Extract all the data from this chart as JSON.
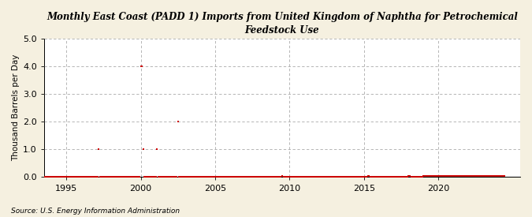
{
  "title": "Monthly East Coast (PADD 1) Imports from United Kingdom of Naphtha for Petrochemical\nFeedstock Use",
  "ylabel": "Thousand Barrels per Day",
  "source": "Source: U.S. Energy Information Administration",
  "background_color": "#f5f0e0",
  "plot_bg_color": "#ffffff",
  "marker_color": "#cc0000",
  "grid_color": "#b0b0b0",
  "xlim": [
    1993.5,
    2025.5
  ],
  "ylim": [
    0.0,
    5.0
  ],
  "yticks": [
    0.0,
    1.0,
    2.0,
    3.0,
    4.0,
    5.0
  ],
  "xticks": [
    1995,
    2000,
    2005,
    2010,
    2015,
    2020
  ],
  "data_points": [
    [
      1993.0,
      0.0
    ],
    [
      1993.083,
      0.0
    ],
    [
      1993.167,
      0.0
    ],
    [
      1993.25,
      0.0
    ],
    [
      1993.333,
      0.0
    ],
    [
      1993.417,
      0.0
    ],
    [
      1993.5,
      0.0
    ],
    [
      1993.583,
      0.0
    ],
    [
      1993.667,
      0.0
    ],
    [
      1993.75,
      0.0
    ],
    [
      1993.833,
      0.0
    ],
    [
      1993.917,
      0.0
    ],
    [
      1994.0,
      0.0
    ],
    [
      1994.083,
      0.0
    ],
    [
      1994.167,
      0.0
    ],
    [
      1994.25,
      0.0
    ],
    [
      1994.333,
      0.0
    ],
    [
      1994.417,
      0.0
    ],
    [
      1994.5,
      0.0
    ],
    [
      1994.583,
      0.0
    ],
    [
      1994.667,
      0.0
    ],
    [
      1994.75,
      0.0
    ],
    [
      1994.833,
      0.0
    ],
    [
      1994.917,
      0.0
    ],
    [
      1995.0,
      0.0
    ],
    [
      1995.083,
      0.0
    ],
    [
      1995.167,
      0.0
    ],
    [
      1995.25,
      0.0
    ],
    [
      1995.333,
      0.0
    ],
    [
      1995.417,
      0.0
    ],
    [
      1995.5,
      0.0
    ],
    [
      1995.583,
      0.0
    ],
    [
      1995.667,
      0.0
    ],
    [
      1995.75,
      0.0
    ],
    [
      1995.833,
      0.0
    ],
    [
      1995.917,
      0.0
    ],
    [
      1996.0,
      0.0
    ],
    [
      1996.083,
      0.0
    ],
    [
      1996.167,
      0.0
    ],
    [
      1996.25,
      0.0
    ],
    [
      1996.333,
      0.0
    ],
    [
      1996.417,
      0.0
    ],
    [
      1996.5,
      0.0
    ],
    [
      1996.583,
      0.0
    ],
    [
      1996.667,
      0.0
    ],
    [
      1996.75,
      0.0
    ],
    [
      1996.833,
      0.0
    ],
    [
      1996.917,
      0.0
    ],
    [
      1997.0,
      0.0
    ],
    [
      1997.083,
      0.0
    ],
    [
      1997.167,
      1.0
    ],
    [
      1997.25,
      0.0
    ],
    [
      1997.333,
      0.0
    ],
    [
      1997.417,
      0.0
    ],
    [
      1997.5,
      0.0
    ],
    [
      1997.583,
      0.0
    ],
    [
      1997.667,
      0.0
    ],
    [
      1997.75,
      0.0
    ],
    [
      1997.833,
      0.0
    ],
    [
      1997.917,
      0.0
    ],
    [
      1998.0,
      0.0
    ],
    [
      1998.083,
      0.0
    ],
    [
      1998.167,
      0.0
    ],
    [
      1998.25,
      0.0
    ],
    [
      1998.333,
      0.0
    ],
    [
      1998.417,
      0.0
    ],
    [
      1998.5,
      0.0
    ],
    [
      1998.583,
      0.0
    ],
    [
      1998.667,
      0.0
    ],
    [
      1998.75,
      0.0
    ],
    [
      1998.833,
      0.0
    ],
    [
      1998.917,
      0.0
    ],
    [
      1999.0,
      0.0
    ],
    [
      1999.083,
      0.0
    ],
    [
      1999.167,
      0.0
    ],
    [
      1999.25,
      0.0
    ],
    [
      1999.333,
      0.0
    ],
    [
      1999.417,
      0.0
    ],
    [
      1999.5,
      0.0
    ],
    [
      1999.583,
      0.0
    ],
    [
      1999.667,
      0.0
    ],
    [
      1999.75,
      0.0
    ],
    [
      1999.833,
      0.0
    ],
    [
      1999.917,
      0.0
    ],
    [
      2000.0,
      4.0
    ],
    [
      2000.083,
      4.0
    ],
    [
      2000.167,
      1.0
    ],
    [
      2000.25,
      0.0
    ],
    [
      2000.333,
      0.0
    ],
    [
      2000.417,
      0.0
    ],
    [
      2000.5,
      0.0
    ],
    [
      2000.583,
      0.0
    ],
    [
      2000.667,
      0.0
    ],
    [
      2000.75,
      0.0
    ],
    [
      2000.833,
      0.0
    ],
    [
      2000.917,
      0.0
    ],
    [
      2001.0,
      0.0
    ],
    [
      2001.083,
      1.0
    ],
    [
      2001.167,
      0.0
    ],
    [
      2001.25,
      0.0
    ],
    [
      2001.333,
      0.0
    ],
    [
      2001.417,
      0.0
    ],
    [
      2001.5,
      0.0
    ],
    [
      2001.583,
      0.0
    ],
    [
      2001.667,
      0.0
    ],
    [
      2001.75,
      0.0
    ],
    [
      2001.833,
      0.0
    ],
    [
      2001.917,
      0.0
    ],
    [
      2002.0,
      0.0
    ],
    [
      2002.083,
      0.0
    ],
    [
      2002.167,
      0.0
    ],
    [
      2002.25,
      0.0
    ],
    [
      2002.333,
      0.0
    ],
    [
      2002.417,
      0.0
    ],
    [
      2002.5,
      2.0
    ],
    [
      2002.583,
      0.0
    ],
    [
      2002.667,
      0.0
    ],
    [
      2002.75,
      0.0
    ],
    [
      2002.833,
      0.0
    ],
    [
      2002.917,
      0.0
    ],
    [
      2003.0,
      0.0
    ],
    [
      2003.083,
      0.0
    ],
    [
      2003.167,
      0.0
    ],
    [
      2003.25,
      0.0
    ],
    [
      2003.333,
      0.0
    ],
    [
      2003.417,
      0.0
    ],
    [
      2003.5,
      0.0
    ],
    [
      2003.583,
      0.0
    ],
    [
      2003.667,
      0.0
    ],
    [
      2003.75,
      0.0
    ],
    [
      2003.833,
      0.0
    ],
    [
      2003.917,
      0.0
    ],
    [
      2004.0,
      0.0
    ],
    [
      2004.083,
      0.0
    ],
    [
      2004.167,
      0.0
    ],
    [
      2004.25,
      0.0
    ],
    [
      2004.333,
      0.0
    ],
    [
      2004.417,
      0.0
    ],
    [
      2004.5,
      0.0
    ],
    [
      2004.583,
      0.0
    ],
    [
      2004.667,
      0.0
    ],
    [
      2004.75,
      0.0
    ],
    [
      2004.833,
      0.0
    ],
    [
      2004.917,
      0.0
    ],
    [
      2005.0,
      0.0
    ],
    [
      2005.083,
      0.0
    ],
    [
      2005.167,
      0.0
    ],
    [
      2005.25,
      0.0
    ],
    [
      2005.333,
      0.0
    ],
    [
      2005.417,
      0.0
    ],
    [
      2005.5,
      0.0
    ],
    [
      2005.583,
      0.0
    ],
    [
      2005.667,
      0.0
    ],
    [
      2005.75,
      0.0
    ],
    [
      2005.833,
      0.0
    ],
    [
      2005.917,
      0.0
    ],
    [
      2006.0,
      0.0
    ],
    [
      2006.083,
      0.0
    ],
    [
      2006.167,
      0.0
    ],
    [
      2006.25,
      0.0
    ],
    [
      2006.333,
      0.0
    ],
    [
      2006.417,
      0.0
    ],
    [
      2006.5,
      0.0
    ],
    [
      2006.583,
      0.0
    ],
    [
      2006.667,
      0.0
    ],
    [
      2006.75,
      0.0
    ],
    [
      2006.833,
      0.0
    ],
    [
      2006.917,
      0.0
    ],
    [
      2007.0,
      0.0
    ],
    [
      2007.083,
      0.0
    ],
    [
      2007.167,
      0.0
    ],
    [
      2007.25,
      0.0
    ],
    [
      2007.333,
      0.0
    ],
    [
      2007.417,
      0.0
    ],
    [
      2007.5,
      0.0
    ],
    [
      2007.583,
      0.0
    ],
    [
      2007.667,
      0.0
    ],
    [
      2007.75,
      0.0
    ],
    [
      2007.833,
      0.0
    ],
    [
      2007.917,
      0.0
    ],
    [
      2008.0,
      0.0
    ],
    [
      2008.083,
      0.0
    ],
    [
      2008.167,
      0.0
    ],
    [
      2008.25,
      0.0
    ],
    [
      2008.333,
      0.0
    ],
    [
      2008.417,
      0.0
    ],
    [
      2008.5,
      0.0
    ],
    [
      2008.583,
      0.0
    ],
    [
      2008.667,
      0.0
    ],
    [
      2008.75,
      0.0
    ],
    [
      2008.833,
      0.0
    ],
    [
      2008.917,
      0.0
    ],
    [
      2009.0,
      0.0
    ],
    [
      2009.083,
      0.0
    ],
    [
      2009.167,
      0.0
    ],
    [
      2009.25,
      0.0
    ],
    [
      2009.333,
      0.0
    ],
    [
      2009.417,
      0.0
    ],
    [
      2009.5,
      0.05
    ],
    [
      2009.583,
      0.0
    ],
    [
      2009.667,
      0.0
    ],
    [
      2009.75,
      0.0
    ],
    [
      2009.833,
      0.0
    ],
    [
      2009.917,
      0.0
    ],
    [
      2010.0,
      0.0
    ],
    [
      2010.083,
      0.0
    ],
    [
      2010.167,
      0.0
    ],
    [
      2010.25,
      0.0
    ],
    [
      2010.333,
      0.0
    ],
    [
      2010.417,
      0.0
    ],
    [
      2010.5,
      0.0
    ],
    [
      2010.583,
      0.0
    ],
    [
      2010.667,
      0.0
    ],
    [
      2010.75,
      0.0
    ],
    [
      2010.833,
      0.0
    ],
    [
      2010.917,
      0.0
    ],
    [
      2011.0,
      0.0
    ],
    [
      2011.083,
      0.0
    ],
    [
      2011.167,
      0.0
    ],
    [
      2011.25,
      0.0
    ],
    [
      2011.333,
      0.0
    ],
    [
      2011.417,
      0.0
    ],
    [
      2011.5,
      0.0
    ],
    [
      2011.583,
      0.0
    ],
    [
      2011.667,
      0.0
    ],
    [
      2011.75,
      0.0
    ],
    [
      2011.833,
      0.0
    ],
    [
      2011.917,
      0.0
    ],
    [
      2012.0,
      0.0
    ],
    [
      2012.083,
      0.0
    ],
    [
      2012.167,
      0.0
    ],
    [
      2012.25,
      0.0
    ],
    [
      2012.333,
      0.0
    ],
    [
      2012.417,
      0.0
    ],
    [
      2012.5,
      0.0
    ],
    [
      2012.583,
      0.0
    ],
    [
      2012.667,
      0.0
    ],
    [
      2012.75,
      0.0
    ],
    [
      2012.833,
      0.0
    ],
    [
      2012.917,
      0.0
    ],
    [
      2013.0,
      0.0
    ],
    [
      2013.083,
      0.0
    ],
    [
      2013.167,
      0.0
    ],
    [
      2013.25,
      0.0
    ],
    [
      2013.333,
      0.0
    ],
    [
      2013.417,
      0.0
    ],
    [
      2013.5,
      0.0
    ],
    [
      2013.583,
      0.0
    ],
    [
      2013.667,
      0.0
    ],
    [
      2013.75,
      0.0
    ],
    [
      2013.833,
      0.0
    ],
    [
      2013.917,
      0.0
    ],
    [
      2014.0,
      0.0
    ],
    [
      2014.083,
      0.0
    ],
    [
      2014.167,
      0.0
    ],
    [
      2014.25,
      0.0
    ],
    [
      2014.333,
      0.0
    ],
    [
      2014.417,
      0.0
    ],
    [
      2014.5,
      0.0
    ],
    [
      2014.583,
      0.0
    ],
    [
      2014.667,
      0.0
    ],
    [
      2014.75,
      0.0
    ],
    [
      2014.833,
      0.0
    ],
    [
      2014.917,
      0.0
    ],
    [
      2015.0,
      0.0
    ],
    [
      2015.083,
      0.0
    ],
    [
      2015.167,
      0.0
    ],
    [
      2015.25,
      0.05
    ],
    [
      2015.333,
      0.05
    ],
    [
      2015.417,
      0.0
    ],
    [
      2015.5,
      0.0
    ],
    [
      2015.583,
      0.0
    ],
    [
      2015.667,
      0.0
    ],
    [
      2015.75,
      0.0
    ],
    [
      2015.833,
      0.0
    ],
    [
      2015.917,
      0.0
    ],
    [
      2016.0,
      0.0
    ],
    [
      2016.083,
      0.0
    ],
    [
      2016.167,
      0.0
    ],
    [
      2016.25,
      0.0
    ],
    [
      2016.333,
      0.0
    ],
    [
      2016.417,
      0.0
    ],
    [
      2016.5,
      0.0
    ],
    [
      2016.583,
      0.0
    ],
    [
      2016.667,
      0.0
    ],
    [
      2016.75,
      0.0
    ],
    [
      2016.833,
      0.0
    ],
    [
      2016.917,
      0.0
    ],
    [
      2017.0,
      0.0
    ],
    [
      2017.083,
      0.0
    ],
    [
      2017.167,
      0.0
    ],
    [
      2017.25,
      0.0
    ],
    [
      2017.333,
      0.0
    ],
    [
      2017.417,
      0.0
    ],
    [
      2017.5,
      0.0
    ],
    [
      2017.583,
      0.0
    ],
    [
      2017.667,
      0.0
    ],
    [
      2017.75,
      0.0
    ],
    [
      2017.833,
      0.0
    ],
    [
      2017.917,
      0.0
    ],
    [
      2018.0,
      0.05
    ],
    [
      2018.083,
      0.05
    ],
    [
      2018.167,
      0.0
    ],
    [
      2018.25,
      0.0
    ],
    [
      2018.333,
      0.0
    ],
    [
      2018.417,
      0.0
    ],
    [
      2018.5,
      0.0
    ],
    [
      2018.583,
      0.0
    ],
    [
      2018.667,
      0.0
    ],
    [
      2018.75,
      0.0
    ],
    [
      2018.833,
      0.0
    ],
    [
      2018.917,
      0.0
    ],
    [
      2019.0,
      0.05
    ],
    [
      2019.083,
      0.05
    ],
    [
      2019.167,
      0.05
    ],
    [
      2019.25,
      0.05
    ],
    [
      2019.333,
      0.05
    ],
    [
      2019.417,
      0.05
    ],
    [
      2019.5,
      0.05
    ],
    [
      2019.583,
      0.05
    ],
    [
      2019.667,
      0.05
    ],
    [
      2019.75,
      0.05
    ],
    [
      2019.833,
      0.05
    ],
    [
      2019.917,
      0.05
    ],
    [
      2020.0,
      0.05
    ],
    [
      2020.083,
      0.05
    ],
    [
      2020.167,
      0.05
    ],
    [
      2020.25,
      0.05
    ],
    [
      2020.333,
      0.05
    ],
    [
      2020.417,
      0.05
    ],
    [
      2020.5,
      0.05
    ],
    [
      2020.583,
      0.05
    ],
    [
      2020.667,
      0.05
    ],
    [
      2020.75,
      0.05
    ],
    [
      2020.833,
      0.05
    ],
    [
      2020.917,
      0.05
    ],
    [
      2021.0,
      0.05
    ],
    [
      2021.083,
      0.05
    ],
    [
      2021.167,
      0.05
    ],
    [
      2021.25,
      0.05
    ],
    [
      2021.333,
      0.05
    ],
    [
      2021.417,
      0.05
    ],
    [
      2021.5,
      0.05
    ],
    [
      2021.583,
      0.05
    ],
    [
      2021.667,
      0.05
    ],
    [
      2021.75,
      0.05
    ],
    [
      2021.833,
      0.05
    ],
    [
      2021.917,
      0.05
    ],
    [
      2022.0,
      0.05
    ],
    [
      2022.083,
      0.05
    ],
    [
      2022.167,
      0.05
    ],
    [
      2022.25,
      0.05
    ],
    [
      2022.333,
      0.05
    ],
    [
      2022.417,
      0.05
    ],
    [
      2022.5,
      0.05
    ],
    [
      2022.583,
      0.05
    ],
    [
      2022.667,
      0.05
    ],
    [
      2022.75,
      0.05
    ],
    [
      2022.833,
      0.05
    ],
    [
      2022.917,
      0.05
    ],
    [
      2023.0,
      0.05
    ],
    [
      2023.083,
      0.05
    ],
    [
      2023.167,
      0.05
    ],
    [
      2023.25,
      0.05
    ],
    [
      2023.333,
      0.05
    ],
    [
      2023.417,
      0.05
    ],
    [
      2023.5,
      0.05
    ],
    [
      2023.583,
      0.05
    ],
    [
      2023.667,
      0.05
    ],
    [
      2023.75,
      0.05
    ],
    [
      2023.833,
      0.05
    ],
    [
      2023.917,
      0.05
    ],
    [
      2024.0,
      0.05
    ],
    [
      2024.083,
      0.05
    ],
    [
      2024.167,
      0.05
    ],
    [
      2024.25,
      0.05
    ],
    [
      2024.333,
      0.05
    ],
    [
      2024.417,
      0.05
    ]
  ]
}
